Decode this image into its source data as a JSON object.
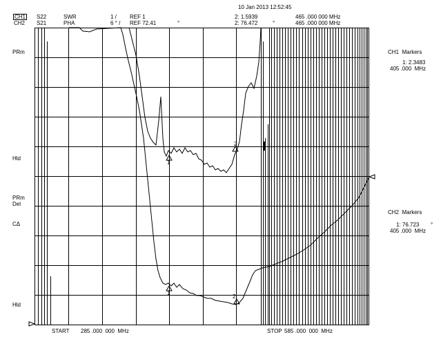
{
  "datetime": "10 Jan 2013 12:52:45",
  "header": {
    "ch1_label": "CH1",
    "ch2_label": "CH2",
    "ch1_param": "S22",
    "ch2_param": "S21",
    "ch1_format": "SWR",
    "ch2_format": "PHA",
    "ch1_scale": "1 /",
    "ch2_scale": "6 ° /",
    "ch1_ref": "REF 1",
    "ch2_ref": "REF 72.41",
    "ch2_ref_unit": "°",
    "ch1_marker_readout": "2: 1.5939",
    "ch2_marker_readout": "2: 76.472",
    "ch2_marker_unit": "°",
    "ch1_marker_freq": "465 .000 000 MHz",
    "ch2_marker_freq": "465 .000 000 MHz"
  },
  "left_labels": {
    "prm_top": "PRm",
    "hld_1": "Hld",
    "prm_2": "PRm",
    "del": "Del",
    "c_delta": "CΔ",
    "hld_2": "Hld"
  },
  "ch1_markers": {
    "title": "CH1  Markers",
    "value": "1: 2.3483",
    "freq": "405 .000  MHz"
  },
  "ch2_markers": {
    "title": "CH2  Markers",
    "value": "1: 76.723",
    "unit": "°",
    "freq": "405 .000  MHz"
  },
  "footer": {
    "start_label": "START",
    "start_freq": "285 .000  000  MHz",
    "stop_label": "STOP",
    "stop_freq": "585 .000  000  MHz"
  },
  "marker_labels": {
    "ch1_m1": "1",
    "ch1_m2": "2",
    "ch2_m1": "1",
    "ch2_m2": "2"
  }
}
